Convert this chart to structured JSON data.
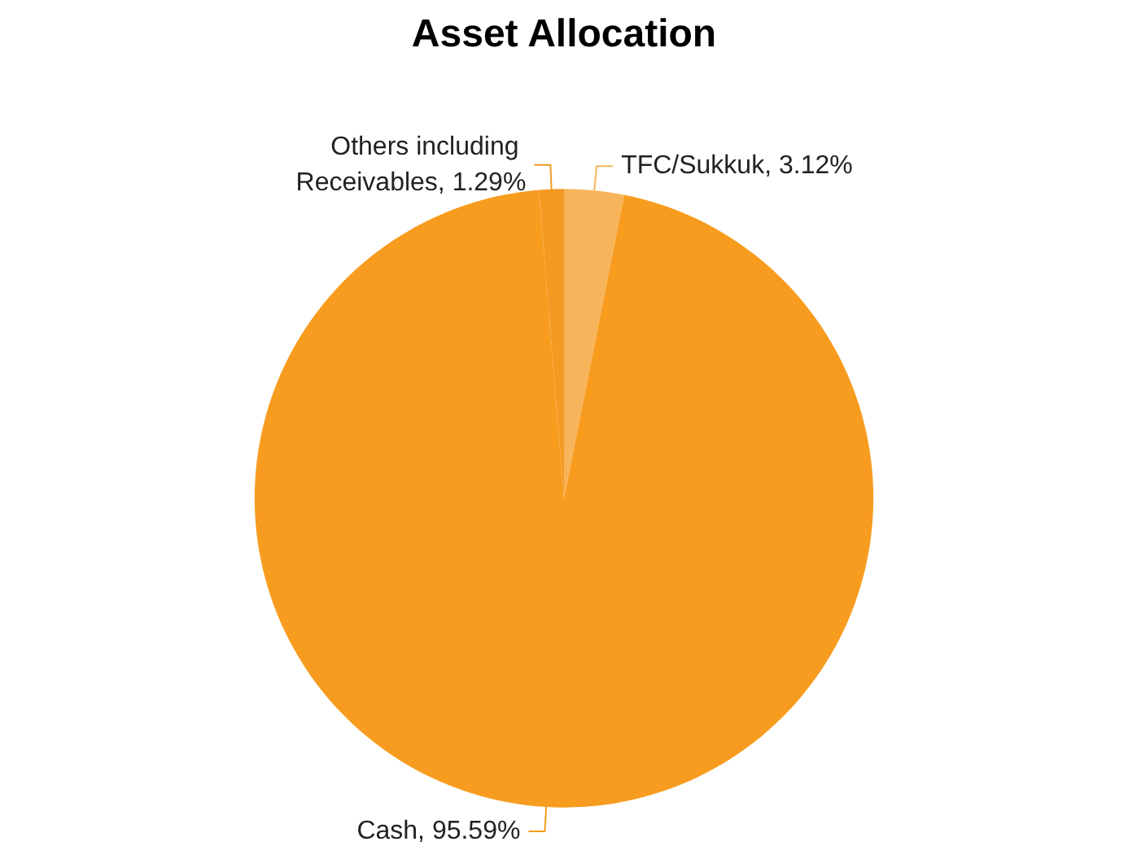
{
  "chart_data": {
    "type": "pie",
    "title": "Asset Allocation",
    "categories": [
      "TFC/Sukkuk",
      "Cash",
      "Others including Receivables"
    ],
    "values": [
      3.12,
      95.59,
      1.29
    ],
    "value_labels": [
      "3.12%",
      "95.59%",
      "1.29%"
    ],
    "colors": [
      "#f8b45a",
      "#f89c1f",
      "#f49a22"
    ],
    "legend": false
  }
}
